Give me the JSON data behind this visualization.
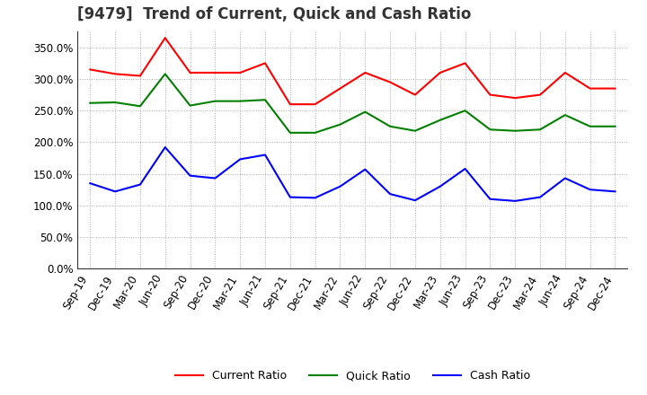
{
  "title": "[9479]  Trend of Current, Quick and Cash Ratio",
  "x_labels": [
    "Sep-19",
    "Dec-19",
    "Mar-20",
    "Jun-20",
    "Sep-20",
    "Dec-20",
    "Mar-21",
    "Jun-21",
    "Sep-21",
    "Dec-21",
    "Mar-22",
    "Jun-22",
    "Sep-22",
    "Dec-22",
    "Mar-23",
    "Jun-23",
    "Sep-23",
    "Dec-23",
    "Mar-24",
    "Jun-24",
    "Sep-24",
    "Dec-24"
  ],
  "current_ratio": [
    3.15,
    3.08,
    3.05,
    3.65,
    3.1,
    3.1,
    3.1,
    3.25,
    2.6,
    2.6,
    2.85,
    3.1,
    2.95,
    2.75,
    3.1,
    3.25,
    2.75,
    2.7,
    2.75,
    3.1,
    2.85,
    2.85
  ],
  "quick_ratio": [
    2.62,
    2.63,
    2.57,
    3.08,
    2.58,
    2.65,
    2.65,
    2.67,
    2.15,
    2.15,
    2.28,
    2.48,
    2.25,
    2.18,
    2.35,
    2.5,
    2.2,
    2.18,
    2.2,
    2.43,
    2.25,
    2.25
  ],
  "cash_ratio": [
    1.35,
    1.22,
    1.33,
    1.92,
    1.47,
    1.43,
    1.73,
    1.8,
    1.13,
    1.12,
    1.3,
    1.57,
    1.18,
    1.08,
    1.3,
    1.58,
    1.1,
    1.07,
    1.13,
    1.43,
    1.25,
    1.22
  ],
  "current_color": "#ff0000",
  "quick_color": "#008000",
  "cash_color": "#0000ff",
  "background_color": "#ffffff",
  "grid_color": "#aaaaaa",
  "line_width": 1.5,
  "legend_labels": [
    "Current Ratio",
    "Quick Ratio",
    "Cash Ratio"
  ],
  "title_fontsize": 12,
  "tick_fontsize": 8.5,
  "legend_fontsize": 9
}
